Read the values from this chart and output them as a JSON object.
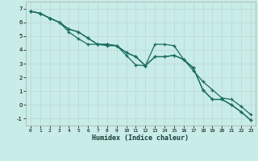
{
  "xlabel": "Humidex (Indice chaleur)",
  "background_color": "#c8ece8",
  "grid_color": "#c0dcd8",
  "line_color": "#1a6b60",
  "xlim": [
    -0.5,
    23.5
  ],
  "ylim": [
    -1.5,
    7.5
  ],
  "xticks": [
    0,
    1,
    2,
    3,
    4,
    5,
    6,
    7,
    8,
    9,
    10,
    11,
    12,
    13,
    14,
    15,
    16,
    17,
    18,
    19,
    20,
    21,
    22,
    23
  ],
  "yticks": [
    -1,
    0,
    1,
    2,
    3,
    4,
    5,
    6,
    7
  ],
  "series": [
    [
      6.8,
      6.65,
      6.3,
      6.0,
      5.3,
      4.8,
      4.4,
      4.4,
      4.3,
      4.3,
      3.6,
      2.9,
      2.85,
      3.5,
      3.5,
      3.6,
      3.3,
      2.7,
      1.1,
      0.4,
      0.4,
      0.0,
      -0.5,
      -1.1
    ],
    [
      6.8,
      6.65,
      6.3,
      6.0,
      5.5,
      5.3,
      4.85,
      4.4,
      4.4,
      4.3,
      3.8,
      3.5,
      2.85,
      4.4,
      4.4,
      4.3,
      3.3,
      2.5,
      1.7,
      1.1,
      0.5,
      0.4,
      -0.1,
      -0.7
    ],
    [
      6.8,
      6.65,
      6.3,
      6.0,
      5.5,
      5.3,
      4.85,
      4.4,
      4.4,
      4.3,
      3.8,
      3.5,
      2.85,
      3.5,
      3.5,
      3.6,
      3.3,
      2.7,
      1.1,
      0.4,
      0.4,
      0.0,
      -0.5,
      -1.1
    ]
  ]
}
